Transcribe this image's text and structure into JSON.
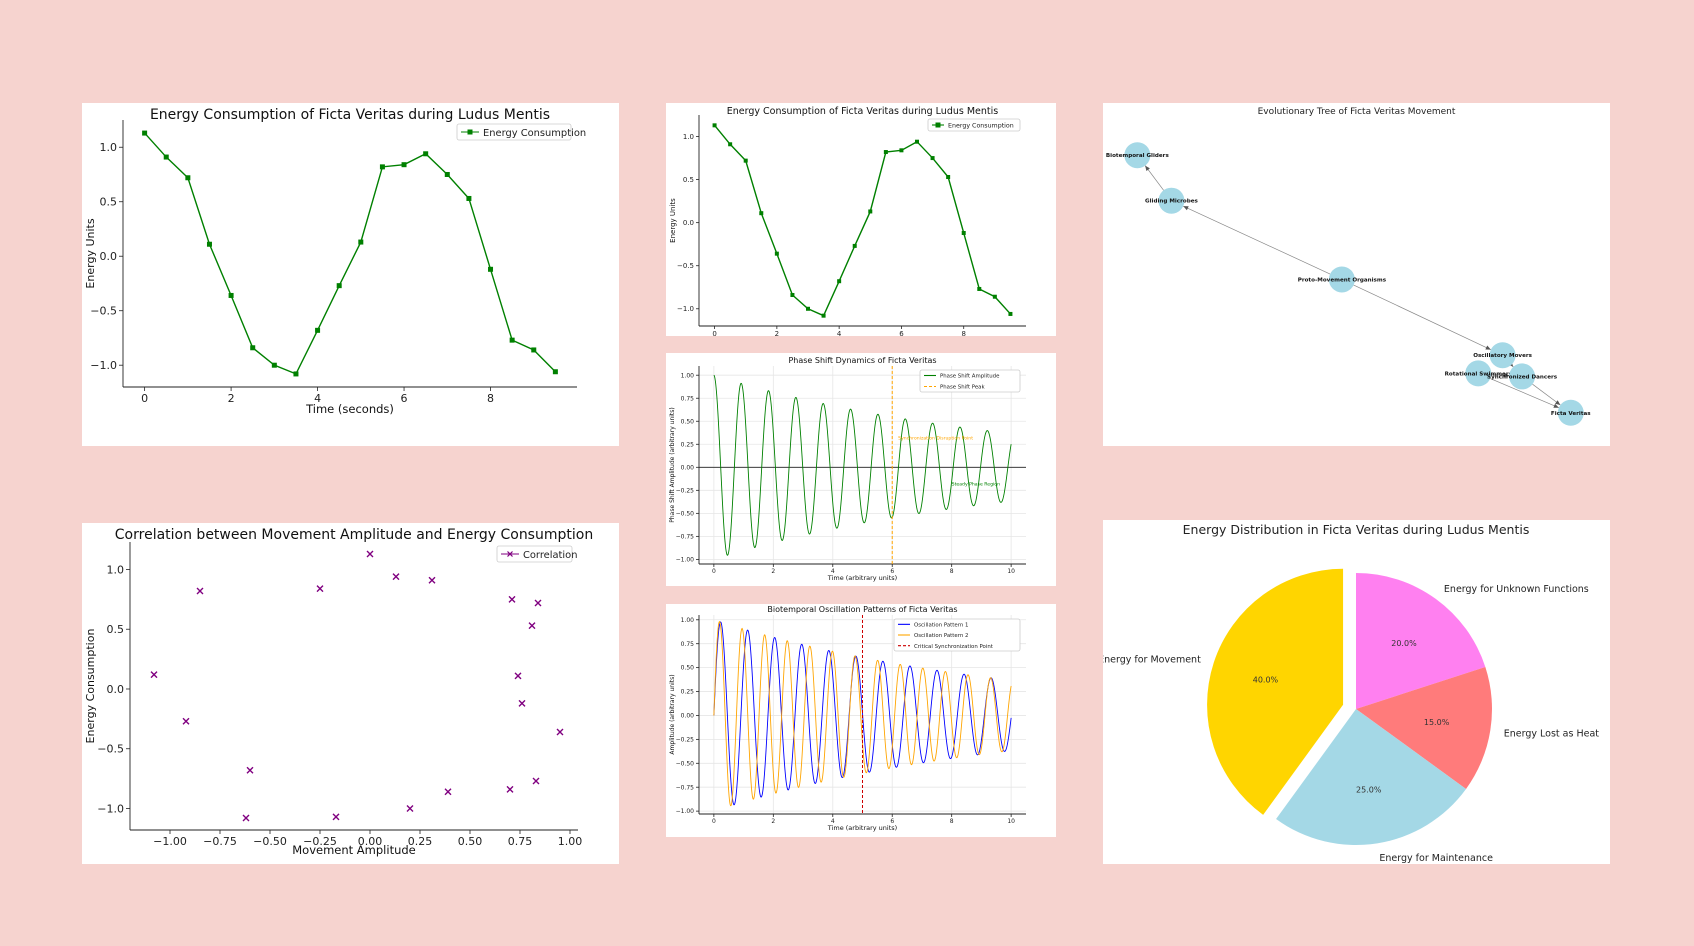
{
  "chart_data": [
    {
      "id": "energy_large",
      "type": "line",
      "title": "Energy Consumption of Ficta Veritas during Ludus Mentis",
      "xlabel": "Time (seconds)",
      "ylabel": "Energy Units",
      "xlim": [
        -0.5,
        10.0
      ],
      "ylim": [
        -1.2,
        1.25
      ],
      "xticks": [
        0,
        2,
        4,
        6,
        8
      ],
      "yticks": [
        -1.0,
        -0.5,
        0.0,
        0.5,
        1.0
      ],
      "xtick_labels": [
        "0",
        "2",
        "4",
        "6",
        "8"
      ],
      "ytick_labels": [
        "−1.0",
        "−0.5",
        "0.0",
        "0.5",
        "1.0"
      ],
      "legend_position": "top-right",
      "grid": false,
      "series": [
        {
          "name": "Energy Consumption",
          "color": "#008000",
          "marker": "square",
          "x": [
            0,
            0.5,
            1,
            1.5,
            2,
            2.5,
            3,
            3.5,
            4,
            4.5,
            5,
            5.5,
            6,
            6.5,
            7,
            7.5,
            8,
            8.5,
            9,
            9.5
          ],
          "y": [
            1.13,
            0.91,
            0.72,
            0.11,
            -0.36,
            -0.84,
            -1.0,
            -1.08,
            -0.68,
            -0.27,
            0.13,
            0.82,
            0.84,
            0.94,
            0.75,
            0.53,
            -0.12,
            -0.77,
            -0.86,
            -1.06
          ]
        }
      ]
    },
    {
      "id": "energy_small",
      "type": "line",
      "title": "Energy Consumption of Ficta Veritas during Ludus Mentis",
      "xlabel": "",
      "ylabel": "Energy Units",
      "xlim": [
        -0.5,
        10.0
      ],
      "ylim": [
        -1.2,
        1.25
      ],
      "xticks": [
        0,
        2,
        4,
        6,
        8
      ],
      "yticks": [
        -1.0,
        -0.5,
        0.0,
        0.5,
        1.0
      ],
      "xtick_labels": [
        "0",
        "2",
        "4",
        "6",
        "8"
      ],
      "ytick_labels": [
        "−1.0",
        "−0.5",
        "0.0",
        "0.5",
        "1.0"
      ],
      "legend_position": "top-right",
      "grid": false,
      "series": [
        {
          "name": "Energy Consumption",
          "color": "#008000",
          "marker": "square",
          "x": [
            0,
            0.5,
            1,
            1.5,
            2,
            2.5,
            3,
            3.5,
            4,
            4.5,
            5,
            5.5,
            6,
            6.5,
            7,
            7.5,
            8,
            8.5,
            9,
            9.5
          ],
          "y": [
            1.13,
            0.91,
            0.72,
            0.11,
            -0.36,
            -0.84,
            -1.0,
            -1.08,
            -0.68,
            -0.27,
            0.13,
            0.82,
            0.84,
            0.94,
            0.75,
            0.53,
            -0.12,
            -0.77,
            -0.86,
            -1.06
          ]
        }
      ]
    },
    {
      "id": "evo_tree",
      "type": "diagram",
      "title": "Evolutionary Tree of Ficta Veritas Movement",
      "node_color": "#a4d8e6",
      "nodes": [
        {
          "id": "bg",
          "label": "Biotemporal Gliders",
          "x": 0.05,
          "y": 0.92
        },
        {
          "id": "gm",
          "label": "Gliding Microbes",
          "x": 0.12,
          "y": 0.77
        },
        {
          "id": "pm",
          "label": "Proto-Movement Organisms",
          "x": 0.47,
          "y": 0.51
        },
        {
          "id": "om",
          "label": "Oscillatory Movers",
          "x": 0.8,
          "y": 0.26
        },
        {
          "id": "rs",
          "label": "Rotational Swimmers",
          "x": 0.75,
          "y": 0.2
        },
        {
          "id": "sd",
          "label": "Synchronized Dancers",
          "x": 0.84,
          "y": 0.19
        },
        {
          "id": "fv",
          "label": "Ficta Veritas",
          "x": 0.94,
          "y": 0.07
        }
      ],
      "edges": [
        [
          "gm",
          "bg"
        ],
        [
          "pm",
          "gm"
        ],
        [
          "pm",
          "om"
        ],
        [
          "om",
          "sd"
        ],
        [
          "rs",
          "fv"
        ],
        [
          "sd",
          "fv"
        ],
        [
          "rs",
          "sd"
        ]
      ]
    },
    {
      "id": "phase_shift",
      "type": "line",
      "title": "Phase Shift Dynamics of Ficta Veritas",
      "xlabel": "Time (arbitrary units)",
      "ylabel": "Phase Shift Amplitude (arbitrary units)",
      "xlim": [
        -0.5,
        10.5
      ],
      "ylim": [
        -1.05,
        1.1
      ],
      "xticks": [
        0,
        2,
        4,
        6,
        8,
        10
      ],
      "yticks": [
        -1.0,
        -0.75,
        -0.5,
        -0.25,
        0.0,
        0.25,
        0.5,
        0.75,
        1.0
      ],
      "xtick_labels": [
        "0",
        "2",
        "4",
        "6",
        "8",
        "10"
      ],
      "ytick_labels": [
        "−1.00",
        "−0.75",
        "−0.50",
        "−0.25",
        "0.00",
        "0.25",
        "0.50",
        "0.75",
        "1.00"
      ],
      "legend_position": "top-right",
      "grid": true,
      "function": {
        "kind": "damped_cosine",
        "amplitude": 1.0,
        "decay": 0.1,
        "period": 0.92,
        "x_start": 0,
        "x_end": 10
      },
      "series": [
        {
          "name": "Phase Shift Amplitude",
          "color": "#008000",
          "style": "solid"
        },
        {
          "name": "Phase Shift Peak",
          "color": "#ffa500",
          "style": "dashed",
          "x": 6
        }
      ],
      "annotations": [
        {
          "text": "Synchronization Disruption Point",
          "color": "#ffa500",
          "x": 6.2,
          "y": 0.3
        },
        {
          "text": "Steady Phase Region",
          "color": "#008000",
          "x": 8.0,
          "y": -0.2
        }
      ]
    },
    {
      "id": "correlation",
      "type": "scatter",
      "title": "Correlation between Movement Amplitude and Energy Consumption",
      "xlabel": "Movement Amplitude",
      "ylabel": "Energy Consumption",
      "xlim": [
        -1.2,
        1.04
      ],
      "ylim": [
        -1.18,
        1.23
      ],
      "xticks": [
        -1.0,
        -0.75,
        -0.5,
        -0.25,
        0.0,
        0.25,
        0.5,
        0.75,
        1.0
      ],
      "yticks": [
        -1.0,
        -0.5,
        0.0,
        0.5,
        1.0
      ],
      "xtick_labels": [
        "−1.00",
        "−0.75",
        "−0.50",
        "−0.25",
        "0.00",
        "0.25",
        "0.50",
        "0.75",
        "1.00"
      ],
      "ytick_labels": [
        "−1.0",
        "−0.5",
        "0.0",
        "0.5",
        "1.0"
      ],
      "legend_position": "top-right",
      "grid": false,
      "series": [
        {
          "name": "Correlation",
          "color": "#800080",
          "marker": "x",
          "x": [
            -1.08,
            -0.92,
            -0.85,
            -0.62,
            -0.6,
            -0.25,
            -0.17,
            0.0,
            0.13,
            0.2,
            0.31,
            0.39,
            0.7,
            0.71,
            0.74,
            0.76,
            0.81,
            0.83,
            0.84,
            0.95
          ],
          "y": [
            0.12,
            -0.27,
            0.82,
            -1.08,
            -0.68,
            0.84,
            -1.07,
            1.13,
            0.94,
            -1.0,
            0.91,
            -0.86,
            -0.84,
            0.75,
            0.11,
            -0.12,
            0.53,
            -0.77,
            0.72,
            -0.36
          ]
        }
      ]
    },
    {
      "id": "oscillation",
      "type": "line",
      "title": "Biotemporal Oscillation Patterns of Ficta Veritas",
      "xlabel": "Time (arbitrary units)",
      "ylabel": "Amplitude (arbitrary units)",
      "xlim": [
        -0.5,
        10.5
      ],
      "ylim": [
        -1.03,
        1.05
      ],
      "xticks": [
        0,
        2,
        4,
        6,
        8,
        10
      ],
      "yticks": [
        -1.0,
        -0.75,
        -0.5,
        -0.25,
        0.0,
        0.25,
        0.5,
        0.75,
        1.0
      ],
      "xtick_labels": [
        "0",
        "2",
        "4",
        "6",
        "8",
        "10"
      ],
      "ytick_labels": [
        "−1.00",
        "−0.75",
        "−0.50",
        "−0.25",
        "0.00",
        "0.25",
        "0.50",
        "0.75",
        "1.00"
      ],
      "legend_position": "top-right",
      "grid": true,
      "series": [
        {
          "name": "Oscillation Pattern 1",
          "color": "#0000ff",
          "style": "solid",
          "function": {
            "kind": "damped_sine",
            "amplitude": 1.0,
            "decay": 0.1,
            "period": 0.91,
            "x_start": 0,
            "x_end": 10
          }
        },
        {
          "name": "Oscillation Pattern 2",
          "color": "#ffa500",
          "style": "solid",
          "function": {
            "kind": "damped_sine",
            "amplitude": 1.0,
            "decay": 0.1,
            "period": 0.76,
            "x_start": 0,
            "x_end": 10
          }
        },
        {
          "name": "Critical Synchronization Point",
          "color": "#cc0000",
          "style": "dashed",
          "x": 5
        }
      ]
    },
    {
      "id": "energy_pie",
      "type": "pie",
      "title": "Energy Distribution in Ficta Veritas during Ludus Mentis",
      "start_angle": 90,
      "direction": "clockwise",
      "slices": [
        {
          "label": "Energy for Unknown Functions",
          "value": 20.0,
          "pct_label": "20.0%",
          "color": "#ff80f0",
          "explode": 0
        },
        {
          "label": "Energy Lost as Heat",
          "value": 15.0,
          "pct_label": "15.0%",
          "color": "#ff7b7b",
          "explode": 0
        },
        {
          "label": "Energy for Maintenance",
          "value": 25.0,
          "pct_label": "25.0%",
          "color": "#a4d8e6",
          "explode": 0
        },
        {
          "label": "Energy for Movement",
          "value": 40.0,
          "pct_label": "40.0%",
          "color": "#ffd500",
          "explode": 0.1
        }
      ]
    }
  ]
}
